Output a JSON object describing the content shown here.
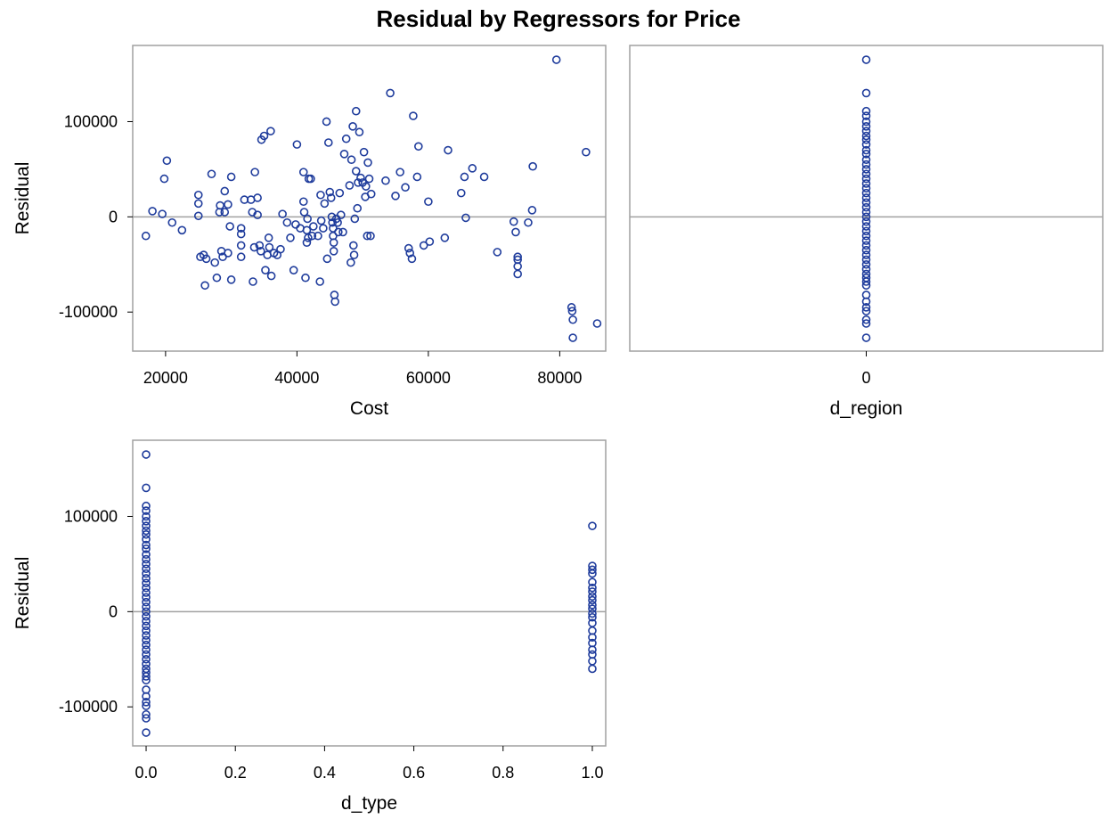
{
  "title": "Residual by Regressors for Price",
  "colors": {
    "marker": "#1f3c9c",
    "refline": "#a0a0a0",
    "frame": "#a0a0a0"
  },
  "chart_data": [
    {
      "type": "scatter",
      "xlabel": "Cost",
      "ylabel": "Residual",
      "xlim": [
        15000,
        87000
      ],
      "ylim": [
        -141000,
        180000
      ],
      "xticks": [
        "20000",
        "40000",
        "60000",
        "80000"
      ],
      "xtick_values": [
        20000,
        40000,
        60000,
        80000
      ],
      "yticks": [
        "-100000",
        "0",
        "100000"
      ],
      "ytick_values": [
        -100000,
        0,
        100000
      ],
      "reference_y": 0,
      "points": [
        [
          17000,
          -20000
        ],
        [
          18000,
          6000
        ],
        [
          19500,
          3000
        ],
        [
          19800,
          40000
        ],
        [
          20200,
          59000
        ],
        [
          21000,
          -6000
        ],
        [
          22500,
          -14000
        ],
        [
          25000,
          23000
        ],
        [
          25000,
          14000
        ],
        [
          25000,
          1000
        ],
        [
          25300,
          -42000
        ],
        [
          25800,
          -40000
        ],
        [
          26000,
          -72000
        ],
        [
          26200,
          -44000
        ],
        [
          27000,
          45000
        ],
        [
          27500,
          -48000
        ],
        [
          27800,
          -64000
        ],
        [
          28200,
          5000
        ],
        [
          28300,
          12000
        ],
        [
          28500,
          -36000
        ],
        [
          28700,
          -42000
        ],
        [
          29000,
          27000
        ],
        [
          29000,
          5000
        ],
        [
          29500,
          13000
        ],
        [
          29500,
          -38000
        ],
        [
          29800,
          -10000
        ],
        [
          30000,
          42000
        ],
        [
          30000,
          -66000
        ],
        [
          31500,
          -12000
        ],
        [
          31500,
          -18000
        ],
        [
          31500,
          -30000
        ],
        [
          31500,
          -42000
        ],
        [
          32000,
          18000
        ],
        [
          33000,
          18000
        ],
        [
          33200,
          5000
        ],
        [
          33300,
          -68000
        ],
        [
          33500,
          -32000
        ],
        [
          33600,
          47000
        ],
        [
          34000,
          20000
        ],
        [
          34000,
          2000
        ],
        [
          34300,
          -30000
        ],
        [
          34500,
          -36000
        ],
        [
          34600,
          81000
        ],
        [
          35000,
          85000
        ],
        [
          35200,
          -56000
        ],
        [
          35500,
          -40000
        ],
        [
          35700,
          -22000
        ],
        [
          35800,
          -32000
        ],
        [
          36000,
          90000
        ],
        [
          36100,
          -62000
        ],
        [
          36500,
          -38000
        ],
        [
          37000,
          -40000
        ],
        [
          37500,
          -34000
        ],
        [
          37800,
          3000
        ],
        [
          38500,
          -6000
        ],
        [
          39000,
          -22000
        ],
        [
          39500,
          -56000
        ],
        [
          39800,
          -8000
        ],
        [
          40000,
          76000
        ],
        [
          40500,
          -12000
        ],
        [
          41000,
          16000
        ],
        [
          41000,
          47000
        ],
        [
          41100,
          5000
        ],
        [
          41300,
          -64000
        ],
        [
          41500,
          -14000
        ],
        [
          41500,
          -27000
        ],
        [
          41600,
          -2000
        ],
        [
          41700,
          -22000
        ],
        [
          41800,
          40000
        ],
        [
          42100,
          40000
        ],
        [
          42300,
          -20000
        ],
        [
          42500,
          -10000
        ],
        [
          43200,
          -20000
        ],
        [
          43500,
          -68000
        ],
        [
          43600,
          23000
        ],
        [
          43700,
          -4000
        ],
        [
          44000,
          -12000
        ],
        [
          44200,
          14000
        ],
        [
          44500,
          100000
        ],
        [
          44600,
          -44000
        ],
        [
          44800,
          78000
        ],
        [
          45000,
          26000
        ],
        [
          45200,
          20000
        ],
        [
          45300,
          0
        ],
        [
          45400,
          -6000
        ],
        [
          45500,
          -12000
        ],
        [
          45500,
          -20000
        ],
        [
          45600,
          -27000
        ],
        [
          45600,
          -36000
        ],
        [
          45700,
          -82000
        ],
        [
          45800,
          -89000
        ],
        [
          46000,
          -2000
        ],
        [
          46200,
          -6000
        ],
        [
          46300,
          -16000
        ],
        [
          46500,
          25000
        ],
        [
          46700,
          2000
        ],
        [
          47000,
          -16000
        ],
        [
          47200,
          66000
        ],
        [
          47500,
          82000
        ],
        [
          48000,
          33000
        ],
        [
          48200,
          -48000
        ],
        [
          48300,
          60000
        ],
        [
          48500,
          95000
        ],
        [
          48600,
          -30000
        ],
        [
          48700,
          -40000
        ],
        [
          48800,
          -2000
        ],
        [
          49000,
          48000
        ],
        [
          49000,
          111000
        ],
        [
          49200,
          9000
        ],
        [
          49300,
          36000
        ],
        [
          49500,
          89000
        ],
        [
          49700,
          41000
        ],
        [
          50000,
          36000
        ],
        [
          50200,
          68000
        ],
        [
          50400,
          21000
        ],
        [
          50500,
          32000
        ],
        [
          50700,
          -20000
        ],
        [
          50800,
          57000
        ],
        [
          51000,
          40000
        ],
        [
          51200,
          -20000
        ],
        [
          51300,
          24000
        ],
        [
          53500,
          38000
        ],
        [
          54200,
          130000
        ],
        [
          55000,
          22000
        ],
        [
          55700,
          47000
        ],
        [
          56500,
          31000
        ],
        [
          57000,
          -33000
        ],
        [
          57200,
          -38000
        ],
        [
          57500,
          -44000
        ],
        [
          57700,
          106000
        ],
        [
          58300,
          42000
        ],
        [
          58500,
          74000
        ],
        [
          59300,
          -30000
        ],
        [
          60000,
          16000
        ],
        [
          60200,
          -26000
        ],
        [
          62500,
          -22000
        ],
        [
          63000,
          70000
        ],
        [
          65000,
          25000
        ],
        [
          65500,
          42000
        ],
        [
          65700,
          -1000
        ],
        [
          66700,
          51000
        ],
        [
          68500,
          42000
        ],
        [
          70500,
          -37000
        ],
        [
          73000,
          -5000
        ],
        [
          73300,
          -16000
        ],
        [
          73600,
          -42000
        ],
        [
          73600,
          -45000
        ],
        [
          73600,
          -52000
        ],
        [
          73600,
          -60000
        ],
        [
          75200,
          -6000
        ],
        [
          75800,
          7000
        ],
        [
          75900,
          53000
        ],
        [
          79500,
          165000
        ],
        [
          81800,
          -95000
        ],
        [
          81900,
          -99000
        ],
        [
          82000,
          -108000
        ],
        [
          82000,
          -127000
        ],
        [
          84000,
          68000
        ],
        [
          85700,
          -112000
        ]
      ]
    },
    {
      "type": "scatter",
      "xlabel": "d_region",
      "ylabel": "",
      "xlim": [
        -1,
        1
      ],
      "ylim": [
        -141000,
        180000
      ],
      "xticks": [
        "0"
      ],
      "xtick_values": [
        0
      ],
      "yticks": [],
      "ytick_values": [],
      "reference_y": 0,
      "points": [
        [
          0,
          165000
        ],
        [
          0,
          130000
        ],
        [
          0,
          111000
        ],
        [
          0,
          106000
        ],
        [
          0,
          100000
        ],
        [
          0,
          95000
        ],
        [
          0,
          90000
        ],
        [
          0,
          85000
        ],
        [
          0,
          81000
        ],
        [
          0,
          76000
        ],
        [
          0,
          70000
        ],
        [
          0,
          66000
        ],
        [
          0,
          60000
        ],
        [
          0,
          55000
        ],
        [
          0,
          50000
        ],
        [
          0,
          45000
        ],
        [
          0,
          40000
        ],
        [
          0,
          35000
        ],
        [
          0,
          30000
        ],
        [
          0,
          25000
        ],
        [
          0,
          20000
        ],
        [
          0,
          15000
        ],
        [
          0,
          10000
        ],
        [
          0,
          5000
        ],
        [
          0,
          0
        ],
        [
          0,
          -5000
        ],
        [
          0,
          -10000
        ],
        [
          0,
          -15000
        ],
        [
          0,
          -20000
        ],
        [
          0,
          -25000
        ],
        [
          0,
          -30000
        ],
        [
          0,
          -35000
        ],
        [
          0,
          -40000
        ],
        [
          0,
          -45000
        ],
        [
          0,
          -50000
        ],
        [
          0,
          -55000
        ],
        [
          0,
          -60000
        ],
        [
          0,
          -64000
        ],
        [
          0,
          -68000
        ],
        [
          0,
          -72000
        ],
        [
          0,
          -82000
        ],
        [
          0,
          -89000
        ],
        [
          0,
          -95000
        ],
        [
          0,
          -99000
        ],
        [
          0,
          -108000
        ],
        [
          0,
          -112000
        ],
        [
          0,
          -127000
        ]
      ]
    },
    {
      "type": "scatter",
      "xlabel": "d_type",
      "ylabel": "Residual",
      "xlim": [
        -0.03,
        1.03
      ],
      "ylim": [
        -141000,
        180000
      ],
      "xticks": [
        "0.0",
        "0.2",
        "0.4",
        "0.6",
        "0.8",
        "1.0"
      ],
      "xtick_values": [
        0,
        0.2,
        0.4,
        0.6,
        0.8,
        1.0
      ],
      "yticks": [
        "-100000",
        "0",
        "100000"
      ],
      "ytick_values": [
        -100000,
        0,
        100000
      ],
      "reference_y": 0,
      "points": [
        [
          0,
          165000
        ],
        [
          0,
          130000
        ],
        [
          0,
          111000
        ],
        [
          0,
          106000
        ],
        [
          0,
          100000
        ],
        [
          0,
          95000
        ],
        [
          0,
          90000
        ],
        [
          0,
          85000
        ],
        [
          0,
          81000
        ],
        [
          0,
          76000
        ],
        [
          0,
          70000
        ],
        [
          0,
          66000
        ],
        [
          0,
          60000
        ],
        [
          0,
          55000
        ],
        [
          0,
          50000
        ],
        [
          0,
          45000
        ],
        [
          0,
          40000
        ],
        [
          0,
          35000
        ],
        [
          0,
          30000
        ],
        [
          0,
          25000
        ],
        [
          0,
          20000
        ],
        [
          0,
          15000
        ],
        [
          0,
          10000
        ],
        [
          0,
          5000
        ],
        [
          0,
          0
        ],
        [
          0,
          -5000
        ],
        [
          0,
          -10000
        ],
        [
          0,
          -15000
        ],
        [
          0,
          -20000
        ],
        [
          0,
          -25000
        ],
        [
          0,
          -30000
        ],
        [
          0,
          -35000
        ],
        [
          0,
          -40000
        ],
        [
          0,
          -45000
        ],
        [
          0,
          -50000
        ],
        [
          0,
          -55000
        ],
        [
          0,
          -60000
        ],
        [
          0,
          -64000
        ],
        [
          0,
          -68000
        ],
        [
          0,
          -72000
        ],
        [
          0,
          -82000
        ],
        [
          0,
          -89000
        ],
        [
          0,
          -95000
        ],
        [
          0,
          -99000
        ],
        [
          0,
          -108000
        ],
        [
          0,
          -112000
        ],
        [
          0,
          -127000
        ],
        [
          1,
          90000
        ],
        [
          1,
          48000
        ],
        [
          1,
          44000
        ],
        [
          1,
          40000
        ],
        [
          1,
          31000
        ],
        [
          1,
          25000
        ],
        [
          1,
          21000
        ],
        [
          1,
          16000
        ],
        [
          1,
          12000
        ],
        [
          1,
          7000
        ],
        [
          1,
          3000
        ],
        [
          1,
          -2000
        ],
        [
          1,
          -6000
        ],
        [
          1,
          -12000
        ],
        [
          1,
          -20000
        ],
        [
          1,
          -27000
        ],
        [
          1,
          -33000
        ],
        [
          1,
          -40000
        ],
        [
          1,
          -45000
        ],
        [
          1,
          -52000
        ],
        [
          1,
          -60000
        ]
      ]
    }
  ]
}
